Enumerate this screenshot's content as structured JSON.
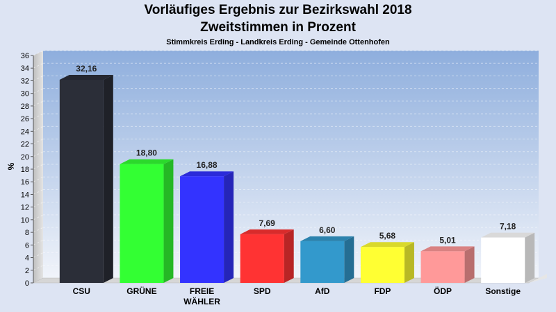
{
  "title": "Vorläufiges Ergebnis zur Bezirkswahl 2018",
  "subtitle": "Zweitstimmen in Prozent",
  "caption": "Stimmkreis Erding - Landkreis Erding - Gemeinde Ottenhofen",
  "colors": {
    "page_bg": "#dde4f3",
    "plot_top": "#8eaedd",
    "plot_bottom": "#f1f4fa",
    "side_wall": "#cfcfcf",
    "floor": "#d6d6d6"
  },
  "chart_data": {
    "type": "bar",
    "title": "Vorläufiges Ergebnis zur Bezirkswahl 2018",
    "subtitle": "Zweitstimmen in Prozent",
    "ylabel": "%",
    "xlabel": "",
    "ylim": [
      0,
      36
    ],
    "yticks": [
      "0",
      "2",
      "4",
      "6",
      "8",
      "10",
      "12",
      "14",
      "16",
      "18",
      "20",
      "22",
      "24",
      "26",
      "28",
      "30",
      "32",
      "34",
      "36"
    ],
    "grid": true,
    "categories": [
      "CSU",
      "GRÜNE",
      "FREIE WÄHLER",
      "SPD",
      "AfD",
      "FDP",
      "ÖDP",
      "Sonstige"
    ],
    "category_lines": [
      [
        "CSU"
      ],
      [
        "GRÜNE"
      ],
      [
        "FREIE",
        "WÄHLER"
      ],
      [
        "SPD"
      ],
      [
        "AfD"
      ],
      [
        "FDP"
      ],
      [
        "ÖDP"
      ],
      [
        "Sonstige"
      ]
    ],
    "values": [
      32.16,
      18.8,
      16.88,
      7.69,
      6.6,
      5.68,
      5.01,
      7.18
    ],
    "value_labels": [
      "32,16",
      "18,80",
      "16,88",
      "7,69",
      "6,60",
      "5,68",
      "5,01",
      "7,18"
    ],
    "colors": [
      "#2b2e38",
      "#33ff33",
      "#3333ff",
      "#ff3333",
      "#3399cc",
      "#ffff33",
      "#ff9999",
      "#ffffff"
    ]
  }
}
